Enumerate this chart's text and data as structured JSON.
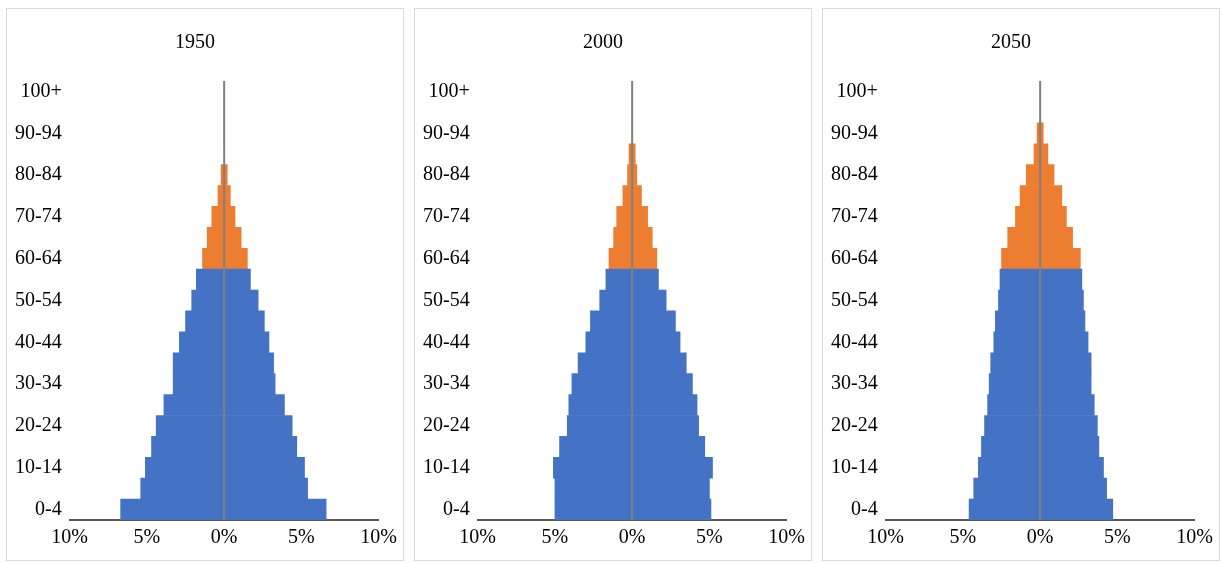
{
  "chart_data": [
    {
      "type": "bar",
      "orientation": "horizontal",
      "stacked": true,
      "title": "1950",
      "grid": false,
      "legend": false,
      "ref_lines": [
        {
          "axis": "x",
          "value": 0,
          "color": "#808080"
        }
      ],
      "categories": [
        "100+",
        null,
        "90-94",
        null,
        "80-84",
        null,
        "70-74",
        null,
        "60-64",
        null,
        "50-54",
        null,
        "40-44",
        null,
        "30-34",
        null,
        "20-24",
        null,
        "10-14",
        null,
        "0-4"
      ],
      "series": [
        {
          "colors": [
            "#ed7d31",
            "#ed7d31",
            "#ed7d31",
            "#ed7d31",
            "#ed7d31",
            "#ed7d31",
            "#ed7d31",
            "#ed7d31",
            "#ed7d31",
            "#4472c4",
            "#4472c4",
            "#4472c4",
            "#4472c4",
            "#4472c4",
            "#4472c4",
            "#4472c4",
            "#4472c4",
            "#4472c4",
            "#4472c4",
            "#4472c4",
            "#4472c4"
          ],
          "values": [
            0,
            0,
            0,
            null,
            -0.2,
            -0.4,
            -0.8,
            -1.1,
            -1.4,
            -1.8,
            -2.1,
            -2.5,
            -2.9,
            -3.3,
            -3.3,
            -3.9,
            -4.4,
            -4.7,
            -5.1,
            -5.4,
            -6.7
          ]
        },
        {
          "colors": [
            "#ed7d31",
            "#ed7d31",
            "#ed7d31",
            "#ed7d31",
            "#ed7d31",
            "#ed7d31",
            "#ed7d31",
            "#ed7d31",
            "#ed7d31",
            "#4472c4",
            "#4472c4",
            "#4472c4",
            "#4472c4",
            "#4472c4",
            "#4472c4",
            "#4472c4",
            "#4472c4",
            "#4472c4",
            "#4472c4",
            "#4472c4",
            "#4472c4"
          ],
          "values": [
            0,
            0,
            0,
            null,
            0.2,
            0.4,
            0.7,
            1.1,
            1.5,
            1.7,
            2.2,
            2.6,
            2.9,
            3.2,
            3.3,
            3.9,
            4.4,
            4.7,
            5.2,
            5.4,
            6.6
          ]
        }
      ],
      "xlim": [
        -10,
        10
      ],
      "xticks": [
        {
          "value": -10,
          "label": "10%"
        },
        {
          "value": -5,
          "label": "5%"
        },
        {
          "value": 0,
          "label": "0%"
        },
        {
          "value": 5,
          "label": "5%"
        },
        {
          "value": 10,
          "label": "10%"
        }
      ]
    },
    {
      "type": "bar",
      "orientation": "horizontal",
      "stacked": true,
      "title": "2000",
      "grid": false,
      "legend": false,
      "ref_lines": [
        {
          "axis": "x",
          "value": 0,
          "color": "#808080"
        }
      ],
      "categories": [
        "100+",
        null,
        "90-94",
        null,
        "80-84",
        null,
        "70-74",
        null,
        "60-64",
        null,
        "50-54",
        null,
        "40-44",
        null,
        "30-34",
        null,
        "20-24",
        null,
        "10-14",
        null,
        "0-4"
      ],
      "series": [
        {
          "colors": [
            "#ed7d31",
            "#ed7d31",
            "#ed7d31",
            "#ed7d31",
            "#ed7d31",
            "#ed7d31",
            "#ed7d31",
            "#ed7d31",
            "#ed7d31",
            "#4472c4",
            "#4472c4",
            "#4472c4",
            "#4472c4",
            "#4472c4",
            "#4472c4",
            "#4472c4",
            "#4472c4",
            "#4472c4",
            "#4472c4",
            "#4472c4",
            "#4472c4"
          ],
          "values": [
            0,
            0,
            0,
            -0.2,
            -0.3,
            -0.6,
            -1.0,
            -1.2,
            -1.5,
            -1.7,
            -2.1,
            -2.7,
            -3.0,
            -3.5,
            -3.9,
            -4.1,
            -4.2,
            -4.7,
            -5.1,
            -5.0,
            -5.0
          ]
        },
        {
          "colors": [
            "#ed7d31",
            "#ed7d31",
            "#ed7d31",
            "#ed7d31",
            "#ed7d31",
            "#ed7d31",
            "#ed7d31",
            "#ed7d31",
            "#ed7d31",
            "#4472c4",
            "#4472c4",
            "#4472c4",
            "#4472c4",
            "#4472c4",
            "#4472c4",
            "#4472c4",
            "#4472c4",
            "#4472c4",
            "#4472c4",
            "#4472c4",
            "#4472c4"
          ],
          "values": [
            0,
            0,
            0,
            0.2,
            0.3,
            0.6,
            1.0,
            1.3,
            1.6,
            1.7,
            2.2,
            2.8,
            3.1,
            3.5,
            3.9,
            4.2,
            4.3,
            4.7,
            5.2,
            5.0,
            5.1
          ]
        }
      ],
      "xlim": [
        -10,
        10
      ],
      "xticks": [
        {
          "value": -10,
          "label": "10%"
        },
        {
          "value": -5,
          "label": "5%"
        },
        {
          "value": 0,
          "label": "0%"
        },
        {
          "value": 5,
          "label": "5%"
        },
        {
          "value": 10,
          "label": "10%"
        }
      ]
    },
    {
      "type": "bar",
      "orientation": "horizontal",
      "stacked": true,
      "title": "2050",
      "grid": false,
      "legend": false,
      "ref_lines": [
        {
          "axis": "x",
          "value": 0,
          "color": "#808080"
        }
      ],
      "categories": [
        "100+",
        null,
        "90-94",
        null,
        "80-84",
        null,
        "70-74",
        null,
        "60-64",
        null,
        "50-54",
        null,
        "40-44",
        null,
        "30-34",
        null,
        "20-24",
        null,
        "10-14",
        null,
        "0-4"
      ],
      "series": [
        {
          "colors": [
            "#ed7d31",
            "#ed7d31",
            "#ed7d31",
            "#ed7d31",
            "#ed7d31",
            "#ed7d31",
            "#ed7d31",
            "#ed7d31",
            "#ed7d31",
            "#4472c4",
            "#4472c4",
            "#4472c4",
            "#4472c4",
            "#4472c4",
            "#4472c4",
            "#4472c4",
            "#4472c4",
            "#4472c4",
            "#4472c4",
            "#4472c4",
            "#4472c4"
          ],
          "values": [
            0,
            0,
            -0.2,
            -0.4,
            -0.9,
            -1.3,
            -1.6,
            -2.1,
            -2.5,
            -2.6,
            -2.7,
            -2.9,
            -3.0,
            -3.2,
            -3.3,
            -3.4,
            -3.6,
            -3.8,
            -4.0,
            -4.3,
            -4.6
          ]
        },
        {
          "colors": [
            "#ed7d31",
            "#ed7d31",
            "#ed7d31",
            "#ed7d31",
            "#ed7d31",
            "#ed7d31",
            "#ed7d31",
            "#ed7d31",
            "#ed7d31",
            "#4472c4",
            "#4472c4",
            "#4472c4",
            "#4472c4",
            "#4472c4",
            "#4472c4",
            "#4472c4",
            "#4472c4",
            "#4472c4",
            "#4472c4",
            "#4472c4",
            "#4472c4"
          ],
          "values": [
            0,
            0,
            0.2,
            0.5,
            0.9,
            1.4,
            1.7,
            2.1,
            2.6,
            2.7,
            2.8,
            2.9,
            3.1,
            3.3,
            3.3,
            3.5,
            3.7,
            3.8,
            4.1,
            4.3,
            4.7
          ]
        }
      ],
      "xlim": [
        -10,
        10
      ],
      "xticks": [
        {
          "value": -10,
          "label": "10%"
        },
        {
          "value": -5,
          "label": "5%"
        },
        {
          "value": 0,
          "label": "0%"
        },
        {
          "value": 5,
          "label": "5%"
        },
        {
          "value": 10,
          "label": "10%"
        }
      ]
    }
  ]
}
